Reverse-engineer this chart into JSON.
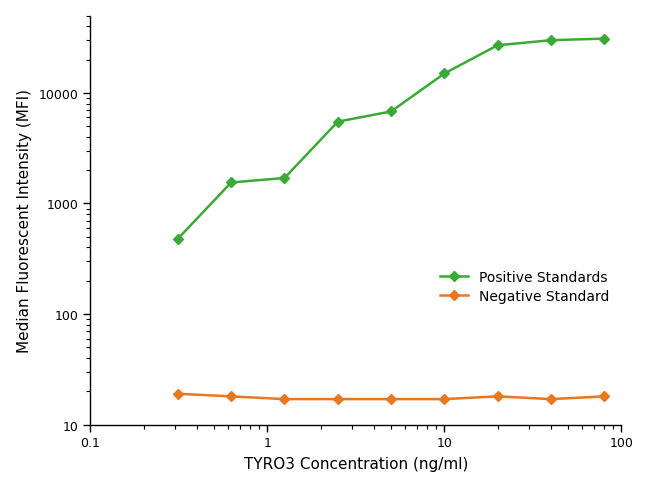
{
  "positive_x": [
    0.3125,
    0.625,
    1.25,
    2.5,
    5.0,
    10.0,
    20.0,
    40.0,
    80.0
  ],
  "positive_y": [
    480,
    1550,
    1700,
    5500,
    6800,
    15000,
    27000,
    30000,
    31000
  ],
  "negative_x": [
    0.3125,
    0.625,
    1.25,
    2.5,
    5.0,
    10.0,
    20.0,
    40.0,
    80.0
  ],
  "negative_y": [
    19,
    18,
    17,
    17,
    17,
    17,
    18,
    17,
    18
  ],
  "positive_color": "#3aaa35",
  "negative_color": "#e87722",
  "xlabel": "TYRO3 Concentration (ng/ml)",
  "ylabel": "Median Fluorescent Intensity (MFI)",
  "positive_label": "Positive Standards",
  "negative_label": "Negative Standard",
  "xlim": [
    0.1,
    100
  ],
  "ylim": [
    10,
    50000
  ],
  "background_color": "#ffffff",
  "marker": "D",
  "markersize": 5,
  "linewidth": 1.8,
  "legend_fontsize": 10,
  "axis_fontsize": 11,
  "tick_labelsize": 9
}
